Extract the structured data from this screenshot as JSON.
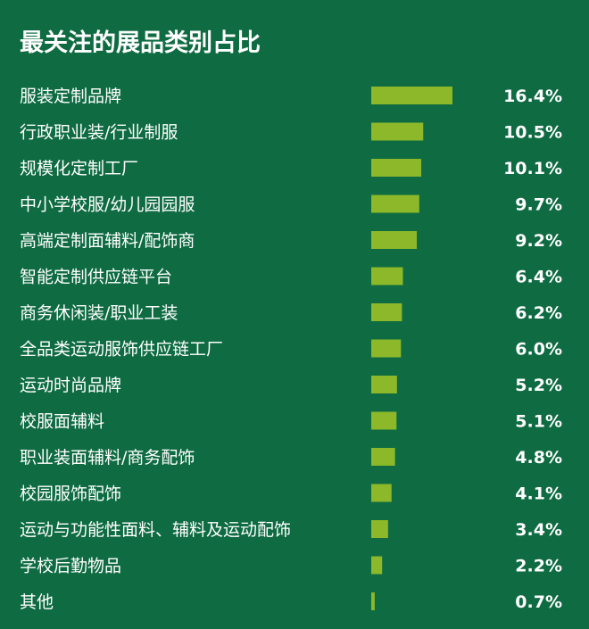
{
  "colors": {
    "background": "#0e6b42",
    "bar": "#8cb82a",
    "text": "#ffffff"
  },
  "chart_data": {
    "type": "bar",
    "orientation": "horizontal",
    "title": "最关注的展品类别占比",
    "categories": [
      "服装定制品牌",
      "行政职业装/行业制服",
      "规模化定制工厂",
      "中小学校服/幼儿园园服",
      "高端定制面辅料/配饰商",
      "智能定制供应链平台",
      "商务休闲装/职业工装",
      "全品类运动服饰供应链工厂",
      "运动时尚品牌",
      "校服面辅料",
      "职业装面辅料/商务配饰",
      "校园服饰配饰",
      "运动与功能性面料、辅料及运动配饰",
      "学校后勤物品",
      "其他"
    ],
    "values": [
      16.4,
      10.5,
      10.1,
      9.7,
      9.2,
      6.4,
      6.2,
      6.0,
      5.2,
      5.1,
      4.8,
      4.1,
      3.4,
      2.2,
      0.7
    ],
    "value_labels": [
      "16.4%",
      "10.5%",
      "10.1%",
      "9.7%",
      "9.2%",
      "6.4%",
      "6.2%",
      "6.0%",
      "5.2%",
      "5.1%",
      "4.8%",
      "4.1%",
      "3.4%",
      "2.2%",
      "0.7%"
    ],
    "unit": "%",
    "xlim": [
      0,
      16.4
    ],
    "grid": false,
    "legend": "none"
  }
}
